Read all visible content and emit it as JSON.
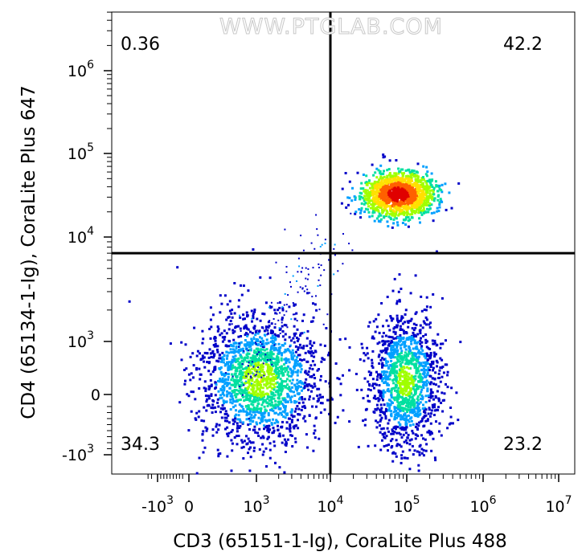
{
  "chart_data": {
    "type": "scatter",
    "title": "",
    "watermark": "WWW.PTGLAB.COM",
    "xlabel": "CD3 (65151-1-Ig), CoraLite Plus 488",
    "ylabel": "CD4 (65134-1-Ig), CoraLite Plus 647",
    "x_scale": "biexponential",
    "y_scale": "biexponential",
    "x_ticks": [
      {
        "base": "-10",
        "exp": "3",
        "value": -1000
      },
      {
        "base": "0",
        "exp": "",
        "value": 0
      },
      {
        "base": "10",
        "exp": "3",
        "value": 1000
      },
      {
        "base": "10",
        "exp": "4",
        "value": 10000
      },
      {
        "base": "10",
        "exp": "5",
        "value": 100000
      },
      {
        "base": "10",
        "exp": "6",
        "value": 1000000
      },
      {
        "base": "10",
        "exp": "7",
        "value": 10000000
      }
    ],
    "y_ticks": [
      {
        "base": "-10",
        "exp": "3",
        "value": -1000
      },
      {
        "base": "0",
        "exp": "",
        "value": 0
      },
      {
        "base": "10",
        "exp": "3",
        "value": 1000
      },
      {
        "base": "10",
        "exp": "4",
        "value": 10000
      },
      {
        "base": "10",
        "exp": "5",
        "value": 100000
      },
      {
        "base": "10",
        "exp": "6",
        "value": 1000000
      }
    ],
    "gate": {
      "x": 10000,
      "y": 7000
    },
    "quadrants": {
      "upper_left": "0.36",
      "upper_right": "42.2",
      "lower_left": "34.3",
      "lower_right": "23.2"
    },
    "populations": [
      {
        "quadrant": "lower_left",
        "center": {
          "x": 500,
          "y": 0
        },
        "percent": 34.3
      },
      {
        "quadrant": "upper_right",
        "center": {
          "x": 100000,
          "y": 35000
        },
        "percent": 42.2
      },
      {
        "quadrant": "lower_right",
        "center": {
          "x": 70000,
          "y": 0
        },
        "percent": 23.2
      }
    ],
    "density_colors": [
      "#0000c8",
      "#00a0ff",
      "#00e0a0",
      "#a0ff00",
      "#ffe000",
      "#ff6000",
      "#e00000"
    ]
  }
}
